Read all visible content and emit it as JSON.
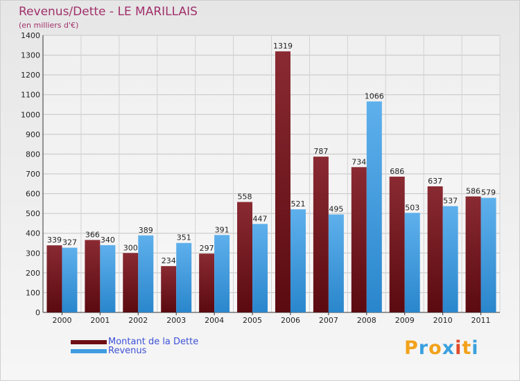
{
  "title": "Revenus/Dette - LE MARILLAIS",
  "subtitle": "(en milliers d'€)",
  "logo": {
    "text": "Proxiti",
    "letters": [
      "P",
      "r",
      "o",
      "x",
      "i",
      "t",
      "i"
    ],
    "colors": [
      "#f2a21b",
      "#3aa0de",
      "#f2a21b",
      "#3aa0de",
      "#e04a2b",
      "#f2a21b",
      "#3aa0de"
    ]
  },
  "legend": [
    {
      "label": "Montant de la Dette",
      "color": "#6e0e14"
    },
    {
      "label": "Revenus",
      "color": "#3f9de0"
    }
  ],
  "chart_data": {
    "type": "bar",
    "title": "Revenus/Dette - LE MARILLAIS",
    "subtitle": "(en milliers d'€)",
    "xlabel": "",
    "ylabel": "",
    "categories": [
      "2000",
      "2001",
      "2002",
      "2003",
      "2004",
      "2005",
      "2006",
      "2007",
      "2008",
      "2009",
      "2010",
      "2011"
    ],
    "series": [
      {
        "name": "Montant de la Dette",
        "color": "#6e0e14",
        "values": [
          339,
          366,
          300,
          234,
          297,
          558,
          1319,
          787,
          734,
          686,
          637,
          586
        ]
      },
      {
        "name": "Revenus",
        "color": "#3f9de0",
        "values": [
          327,
          340,
          389,
          351,
          391,
          447,
          521,
          495,
          1066,
          503,
          537,
          579
        ]
      }
    ],
    "ylim": [
      0,
      1400
    ],
    "yticks": [
      0,
      100,
      200,
      300,
      400,
      500,
      600,
      700,
      800,
      900,
      1000,
      1100,
      1200,
      1300,
      1400
    ],
    "grid": true,
    "legend_position": "bottom-left"
  }
}
